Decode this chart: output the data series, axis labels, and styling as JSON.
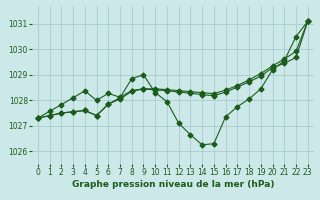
{
  "title": "Graphe pression niveau de la mer (hPa)",
  "bg_color": "#cce8e8",
  "grid_color": "#aacccc",
  "line_color": "#1a5c1a",
  "xlim": [
    -0.5,
    23.5
  ],
  "ylim": [
    1025.5,
    1031.7
  ],
  "yticks": [
    1026,
    1027,
    1028,
    1029,
    1030,
    1031
  ],
  "xticks": [
    0,
    1,
    2,
    3,
    4,
    5,
    6,
    7,
    8,
    9,
    10,
    11,
    12,
    13,
    14,
    15,
    16,
    17,
    18,
    19,
    20,
    21,
    22,
    23
  ],
  "series1_x": [
    0,
    1,
    2,
    3,
    4,
    5,
    6,
    7,
    8,
    9,
    10,
    11,
    12,
    13,
    14,
    15,
    16,
    17,
    18,
    19,
    20,
    21,
    22,
    23
  ],
  "series1_y": [
    1027.3,
    1027.4,
    1027.5,
    1027.55,
    1027.6,
    1027.4,
    1027.85,
    1028.1,
    1028.85,
    1029.0,
    1028.3,
    1027.95,
    1027.1,
    1026.65,
    1026.25,
    1026.3,
    1027.35,
    1027.75,
    1028.05,
    1028.45,
    1029.2,
    1029.55,
    1030.5,
    1031.1
  ],
  "series2_x": [
    0,
    1,
    2,
    3,
    4,
    5,
    6,
    7,
    8,
    9,
    10,
    11,
    12,
    13,
    14,
    15,
    16,
    17,
    18,
    19,
    20,
    21,
    22,
    23
  ],
  "series2_y": [
    1027.3,
    1027.4,
    1027.5,
    1027.55,
    1027.6,
    1027.4,
    1027.85,
    1028.05,
    1028.35,
    1028.45,
    1028.4,
    1028.38,
    1028.32,
    1028.28,
    1028.22,
    1028.18,
    1028.32,
    1028.52,
    1028.72,
    1028.95,
    1029.28,
    1029.45,
    1029.68,
    1031.1
  ],
  "series3_x": [
    0,
    1,
    2,
    3,
    4,
    5,
    6,
    7,
    8,
    9,
    10,
    11,
    12,
    13,
    14,
    15,
    16,
    17,
    18,
    19,
    20,
    21,
    22,
    23
  ],
  "series3_y": [
    1027.3,
    1027.57,
    1027.83,
    1028.1,
    1028.37,
    1028.0,
    1028.27,
    1028.12,
    1028.38,
    1028.45,
    1028.45,
    1028.42,
    1028.38,
    1028.34,
    1028.3,
    1028.26,
    1028.4,
    1028.58,
    1028.8,
    1029.05,
    1029.35,
    1029.62,
    1029.92,
    1031.1
  ]
}
